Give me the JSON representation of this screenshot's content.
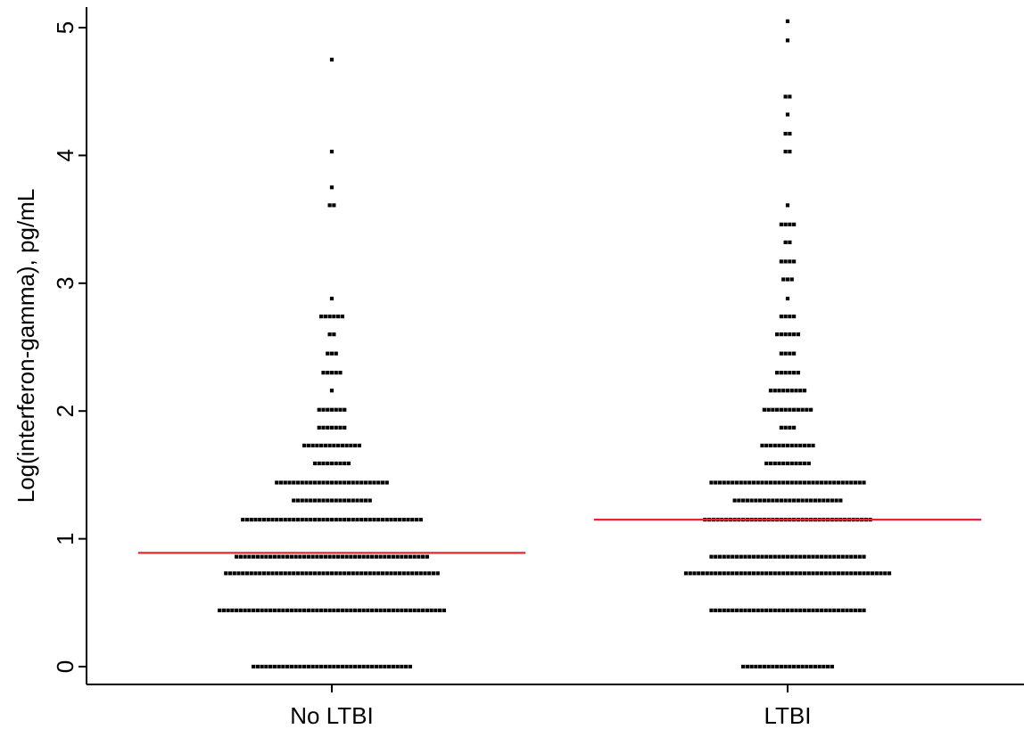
{
  "chart_data": {
    "type": "scatter",
    "subtype": "dot-strip (beeswarm) with median lines",
    "title": "",
    "xlabel": "",
    "ylabel": "Log(interferon-gamma), pg/mL",
    "categories": [
      "No LTBI",
      "LTBI"
    ],
    "ylim": [
      0,
      5.15
    ],
    "yticks": [
      0,
      1,
      2,
      3,
      4,
      5
    ],
    "ytick_labels": [
      "0",
      "1",
      "2",
      "3",
      "4",
      "5"
    ],
    "grid": false,
    "legend": null,
    "colors": {
      "points": "#000000",
      "median_line": "#e8262d",
      "axis": "#000000"
    },
    "series": [
      {
        "category": "No LTBI",
        "median": 0.89,
        "bins": [
          {
            "y": 0.0,
            "count": 38
          },
          {
            "y": 0.44,
            "count": 54
          },
          {
            "y": 0.73,
            "count": 51
          },
          {
            "y": 0.86,
            "count": 46
          },
          {
            "y": 1.15,
            "count": 43
          },
          {
            "y": 1.3,
            "count": 19
          },
          {
            "y": 1.44,
            "count": 27
          },
          {
            "y": 1.59,
            "count": 9
          },
          {
            "y": 1.73,
            "count": 14
          },
          {
            "y": 1.87,
            "count": 7
          },
          {
            "y": 2.01,
            "count": 7
          },
          {
            "y": 2.16,
            "count": 1
          },
          {
            "y": 2.3,
            "count": 5
          },
          {
            "y": 2.45,
            "count": 3
          },
          {
            "y": 2.6,
            "count": 2
          },
          {
            "y": 2.74,
            "count": 6
          },
          {
            "y": 2.88,
            "count": 1
          },
          {
            "y": 3.61,
            "count": 2
          },
          {
            "y": 3.75,
            "count": 1
          },
          {
            "y": 4.03,
            "count": 1
          },
          {
            "y": 4.75,
            "count": 1
          }
        ]
      },
      {
        "category": "LTBI",
        "median": 1.15,
        "bins": [
          {
            "y": 0.0,
            "count": 22
          },
          {
            "y": 0.44,
            "count": 37
          },
          {
            "y": 0.73,
            "count": 49
          },
          {
            "y": 0.86,
            "count": 37
          },
          {
            "y": 1.15,
            "count": 40
          },
          {
            "y": 1.3,
            "count": 26
          },
          {
            "y": 1.44,
            "count": 37
          },
          {
            "y": 1.59,
            "count": 11
          },
          {
            "y": 1.73,
            "count": 13
          },
          {
            "y": 1.87,
            "count": 4
          },
          {
            "y": 2.01,
            "count": 12
          },
          {
            "y": 2.16,
            "count": 9
          },
          {
            "y": 2.3,
            "count": 6
          },
          {
            "y": 2.45,
            "count": 4
          },
          {
            "y": 2.6,
            "count": 6
          },
          {
            "y": 2.74,
            "count": 4
          },
          {
            "y": 2.88,
            "count": 1
          },
          {
            "y": 3.03,
            "count": 3
          },
          {
            "y": 3.17,
            "count": 4
          },
          {
            "y": 3.32,
            "count": 2
          },
          {
            "y": 3.46,
            "count": 4
          },
          {
            "y": 3.61,
            "count": 1
          },
          {
            "y": 4.03,
            "count": 2
          },
          {
            "y": 4.17,
            "count": 2
          },
          {
            "y": 4.32,
            "count": 1
          },
          {
            "y": 4.46,
            "count": 2
          },
          {
            "y": 4.9,
            "count": 1
          },
          {
            "y": 5.05,
            "count": 1
          }
        ]
      }
    ]
  }
}
